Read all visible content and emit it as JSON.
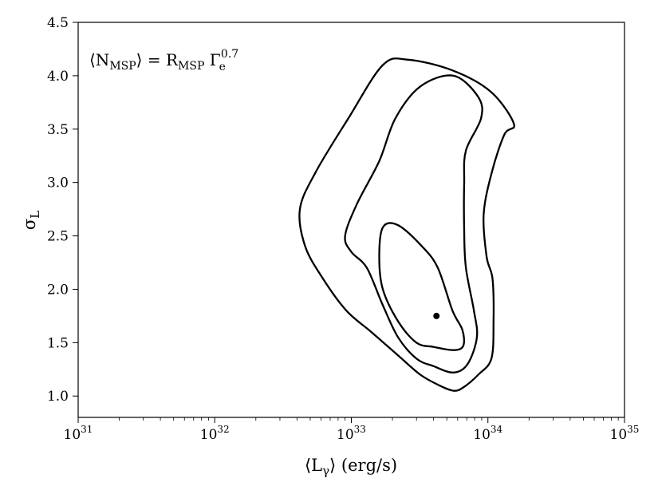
{
  "chart_data": {
    "type": "contour",
    "xlabel_main": "⟨L",
    "xlabel_sub": "γ",
    "xlabel_rest": "⟩ (erg/s)",
    "ylabel_main": "σ",
    "ylabel_sub": "L",
    "annotation": {
      "part1": "⟨N",
      "part1_sub": "MSP",
      "part2": "⟩ = R",
      "part2_sub": "MSP",
      "part3": " Γ",
      "part3_sub": "e",
      "part3_sup": "0.7"
    },
    "x_scale": "log",
    "xlim": [
      1e+31,
      1e+35
    ],
    "ylim": [
      0.8,
      4.5
    ],
    "x_ticks": [
      {
        "base": "10",
        "exp": "31",
        "value": 1e+31
      },
      {
        "base": "10",
        "exp": "32",
        "value": 1e+32
      },
      {
        "base": "10",
        "exp": "33",
        "value": 1e+33
      },
      {
        "base": "10",
        "exp": "34",
        "value": 1e+34
      },
      {
        "base": "10",
        "exp": "35",
        "value": 1e+35
      }
    ],
    "y_ticks": [
      "1.0",
      "1.5",
      "2.0",
      "2.5",
      "3.0",
      "3.5",
      "4.0",
      "4.5"
    ],
    "best_fit": {
      "x": 4.2e+33,
      "y": 1.75
    },
    "contours": [
      {
        "name": "inner",
        "points": [
          [
            3e+33,
            1.5
          ],
          [
            4e+33,
            1.46
          ],
          [
            5.6e+33,
            1.43
          ],
          [
            6.6e+33,
            1.47
          ],
          [
            6.5e+33,
            1.62
          ],
          [
            5.5e+33,
            1.8
          ],
          [
            4.3e+33,
            2.2
          ],
          [
            3.3e+33,
            2.4
          ],
          [
            2.2e+33,
            2.6
          ],
          [
            1.7e+33,
            2.58
          ],
          [
            1.6e+33,
            2.3
          ],
          [
            1.7e+33,
            2.0
          ],
          [
            2.2e+33,
            1.7
          ],
          [
            3e+33,
            1.5
          ]
        ]
      },
      {
        "name": "middle",
        "points": [
          [
            3e+33,
            1.35
          ],
          [
            4e+33,
            1.28
          ],
          [
            5.6e+33,
            1.22
          ],
          [
            7.1e+33,
            1.3
          ],
          [
            8.3e+33,
            1.55
          ],
          [
            7.9e+33,
            1.8
          ],
          [
            6.9e+33,
            2.2
          ],
          [
            6.7e+33,
            2.55
          ],
          [
            6.7e+33,
            3.0
          ],
          [
            6.9e+33,
            3.3
          ],
          [
            8.9e+33,
            3.6
          ],
          [
            8.5e+33,
            3.8
          ],
          [
            5.6e+33,
            4.0
          ],
          [
            3.2e+33,
            3.9
          ],
          [
            2.1e+33,
            3.6
          ],
          [
            1.6e+33,
            3.2
          ],
          [
            1.1e+33,
            2.8
          ],
          [
            9e+32,
            2.5
          ],
          [
            1e+33,
            2.35
          ],
          [
            1.3e+33,
            2.2
          ],
          [
            1.7e+33,
            1.85
          ],
          [
            2.2e+33,
            1.55
          ],
          [
            3e+33,
            1.35
          ]
        ]
      },
      {
        "name": "outer",
        "points": [
          [
            3.2e+33,
            1.2
          ],
          [
            4.4e+33,
            1.1
          ],
          [
            5.6e+33,
            1.05
          ],
          [
            6.6e+33,
            1.08
          ],
          [
            8.5e+33,
            1.2
          ],
          [
            1.06e+34,
            1.35
          ],
          [
            1.1e+34,
            1.7
          ],
          [
            1.08e+34,
            2.1
          ],
          [
            9.8e+33,
            2.3
          ],
          [
            9.3e+33,
            2.7
          ],
          [
            1.07e+34,
            3.1
          ],
          [
            1.32e+34,
            3.45
          ],
          [
            1.55e+34,
            3.55
          ],
          [
            1.05e+34,
            3.85
          ],
          [
            5.5e+33,
            4.05
          ],
          [
            2.6e+33,
            4.15
          ],
          [
            1.7e+33,
            4.1
          ],
          [
            9.5e+32,
            3.6
          ],
          [
            5.5e+32,
            3.1
          ],
          [
            4.2e+32,
            2.75
          ],
          [
            4.6e+32,
            2.4
          ],
          [
            6.2e+32,
            2.1
          ],
          [
            9.2e+32,
            1.8
          ],
          [
            1.4e+33,
            1.6
          ],
          [
            2.2e+33,
            1.38
          ],
          [
            3.2e+33,
            1.2
          ]
        ]
      }
    ],
    "line_color": "#000000",
    "marker_color": "#000000"
  }
}
